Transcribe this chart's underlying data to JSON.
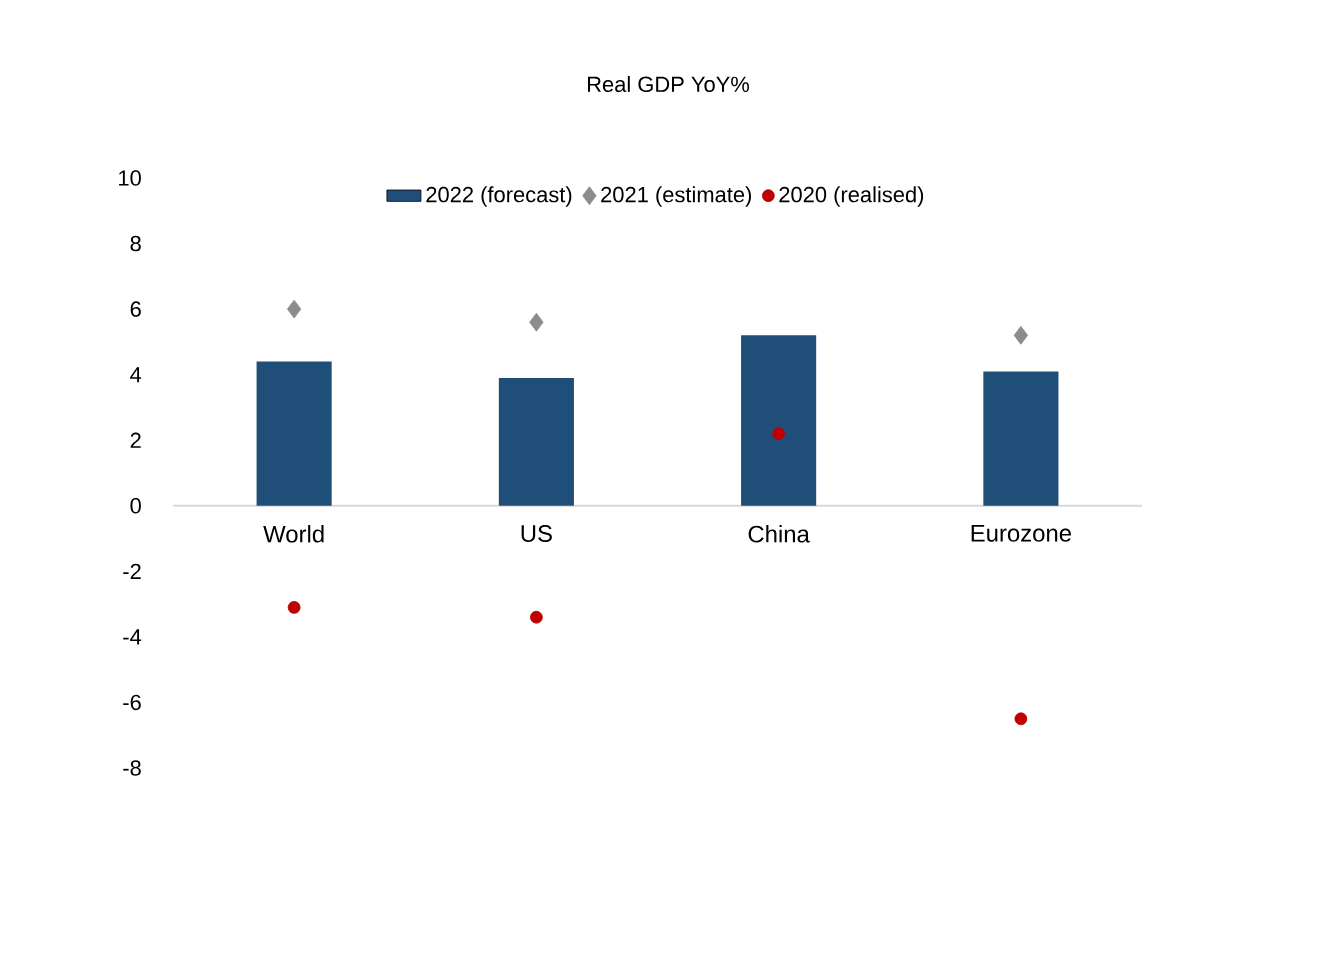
{
  "chart_data": {
    "type": "bar",
    "title": "Real GDP YoY%",
    "categories": [
      "World",
      "US",
      "China",
      "Eurozone"
    ],
    "series": [
      {
        "name": "2022 (forecast)",
        "type": "bar",
        "color": "#1f4e79",
        "values": [
          4.4,
          3.9,
          5.2,
          4.1
        ]
      },
      {
        "name": "2021 (estimate)",
        "type": "scatter",
        "marker": "diamond",
        "color": "#8c8c8c",
        "values": [
          6.0,
          5.6,
          null,
          5.2
        ]
      },
      {
        "name": "2020 (realised)",
        "type": "scatter",
        "marker": "circle",
        "color": "#c00000",
        "values": [
          -3.1,
          -3.4,
          2.2,
          -6.5
        ]
      }
    ],
    "ylim": [
      -8,
      10
    ],
    "yticks": [
      -8,
      -6,
      -4,
      -2,
      0,
      2,
      4,
      6,
      8,
      10
    ],
    "grid": false,
    "legend": "top"
  }
}
